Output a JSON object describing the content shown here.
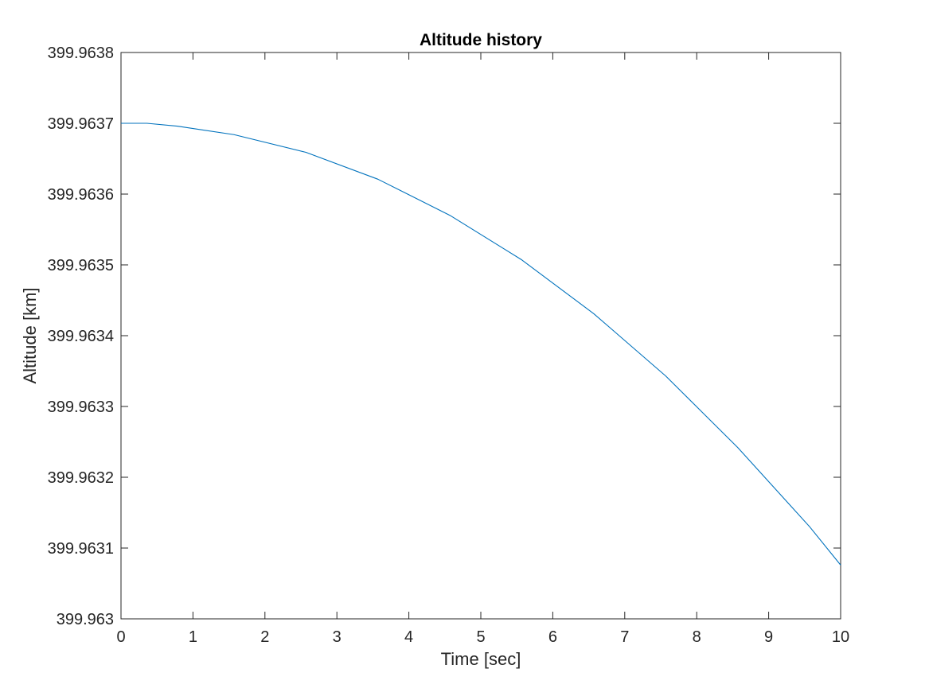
{
  "chart_data": {
    "type": "line",
    "title": "Altitude history",
    "xlabel": "Time [sec]",
    "ylabel": "Altitude [km]",
    "xlim": [
      0,
      10
    ],
    "ylim": [
      399.963,
      399.9638
    ],
    "x_ticks": [
      0,
      1,
      2,
      3,
      4,
      5,
      6,
      7,
      8,
      9,
      10
    ],
    "x_tick_labels": [
      "0",
      "1",
      "2",
      "3",
      "4",
      "5",
      "6",
      "7",
      "8",
      "9",
      "10"
    ],
    "y_ticks": [
      399.963,
      399.9631,
      399.9632,
      399.9633,
      399.9634,
      399.9635,
      399.9636,
      399.9637,
      399.9638
    ],
    "y_tick_labels": [
      "399.963",
      "399.9631",
      "399.9632",
      "399.9633",
      "399.9634",
      "399.9635",
      "399.9636",
      "399.9637",
      "399.9638"
    ],
    "grid": false,
    "box": true,
    "series": [
      {
        "color": "#0072BD",
        "x": [
          0,
          0.36,
          0.78,
          1.57,
          2.57,
          3.57,
          4.57,
          5.57,
          6.57,
          7.57,
          8.57,
          9.57,
          10
        ],
        "y": [
          399.9637,
          399.9637,
          399.963696,
          399.963684,
          399.963659,
          399.963621,
          399.96357,
          399.963507,
          399.963431,
          399.963343,
          399.963242,
          399.96313,
          399.963076
        ]
      }
    ]
  }
}
